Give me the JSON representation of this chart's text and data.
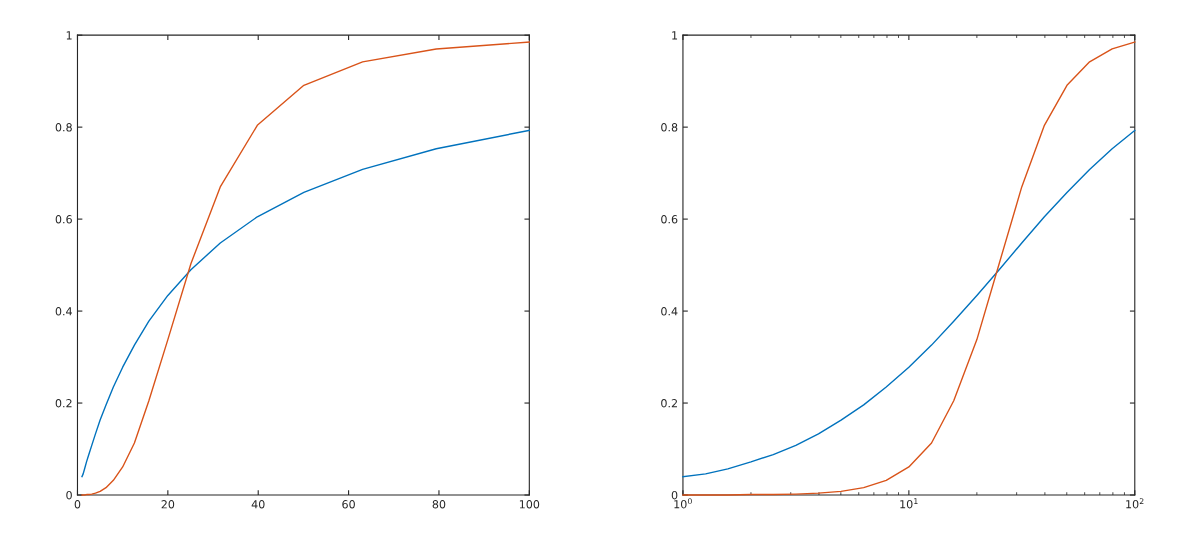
{
  "chart_data": [
    {
      "type": "line",
      "x": [
        1,
        1.26,
        1.58,
        2,
        2.51,
        3.16,
        3.98,
        5.01,
        6.31,
        7.94,
        10,
        12.6,
        15.8,
        20,
        25.1,
        31.6,
        39.8,
        50.1,
        63.1,
        79.4,
        100
      ],
      "series": [
        {
          "color": "#0072bd",
          "values": [
            0.04,
            0.046,
            0.057,
            0.072,
            0.088,
            0.108,
            0.133,
            0.163,
            0.196,
            0.235,
            0.278,
            0.326,
            0.378,
            0.434,
            0.49,
            0.548,
            0.605,
            0.658,
            0.708,
            0.753,
            0.793
          ]
        },
        {
          "color": "#d95319",
          "values": [
            0,
            0,
            0,
            0.001,
            0.001,
            0.002,
            0.004,
            0.008,
            0.016,
            0.032,
            0.061,
            0.113,
            0.205,
            0.338,
            0.503,
            0.67,
            0.804,
            0.891,
            0.942,
            0.97,
            0.985
          ]
        }
      ],
      "xlim": [
        0,
        100
      ],
      "xticks": [
        0,
        20,
        40,
        60,
        80,
        100
      ],
      "ylim": [
        0,
        1
      ],
      "yticks": [
        0,
        0.2,
        0.4,
        0.6,
        0.8,
        1
      ],
      "grid": false,
      "legend": false
    },
    {
      "type": "line",
      "x": [
        1,
        1.26,
        1.58,
        2,
        2.51,
        3.16,
        3.98,
        5.01,
        6.31,
        7.94,
        10,
        12.6,
        15.8,
        20,
        25.1,
        31.6,
        39.8,
        50.1,
        63.1,
        79.4,
        100
      ],
      "series": [
        {
          "color": "#0072bd",
          "values": [
            0.04,
            0.046,
            0.057,
            0.072,
            0.088,
            0.108,
            0.133,
            0.163,
            0.196,
            0.235,
            0.278,
            0.326,
            0.378,
            0.434,
            0.49,
            0.548,
            0.605,
            0.658,
            0.708,
            0.753,
            0.793
          ]
        },
        {
          "color": "#d95319",
          "values": [
            0,
            0,
            0,
            0.001,
            0.001,
            0.002,
            0.004,
            0.008,
            0.016,
            0.032,
            0.061,
            0.113,
            0.205,
            0.338,
            0.503,
            0.67,
            0.804,
            0.891,
            0.942,
            0.97,
            0.985
          ]
        }
      ],
      "log": "x",
      "xlim": [
        1,
        100
      ],
      "xticks": [
        {
          "value": 1,
          "label": "10$^{0}$"
        },
        {
          "value": 10,
          "label": "10$^{1}$"
        },
        {
          "value": 100,
          "label": "10$^{2}$"
        }
      ],
      "ylim": [
        0,
        1
      ],
      "yticks": [
        0,
        0.2,
        0.4,
        0.6,
        0.8,
        1
      ],
      "grid": false,
      "legend": false
    }
  ]
}
